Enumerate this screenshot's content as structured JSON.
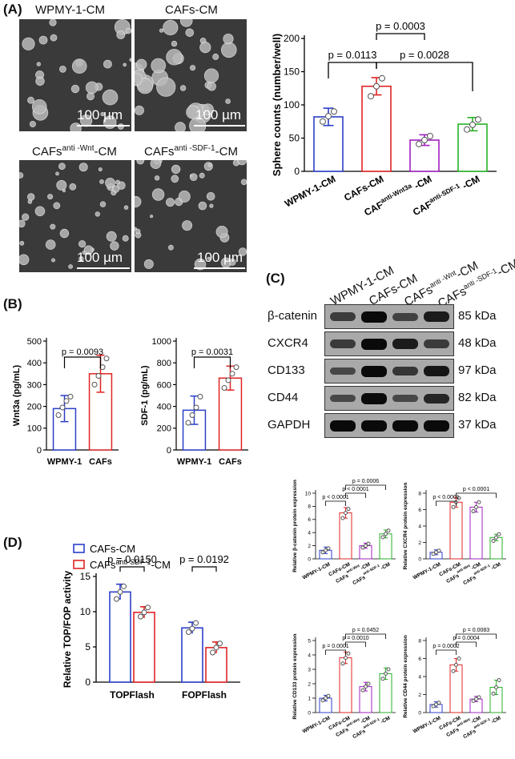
{
  "panels": {
    "a": "(A)",
    "b": "(B)",
    "c": "(C)",
    "d": "(D)"
  },
  "panelA": {
    "images": [
      {
        "label": "WPMY-1-CM",
        "scale": "100 µm"
      },
      {
        "label": "CAFs-CM",
        "scale": "100 µm"
      },
      {
        "label_main": "CAFs",
        "label_sup": "anti -Wnt",
        "label_tail": "-CM",
        "scale": "100 µm"
      },
      {
        "label_main": "CAFs",
        "label_sup": "anti -SDF-1",
        "label_tail": "-CM",
        "scale": "100 µm"
      }
    ]
  },
  "panelC": {
    "columns": [
      {
        "main": "WPMY-1-CM",
        "sup": "",
        "tail": ""
      },
      {
        "main": "CAFs-CM",
        "sup": "",
        "tail": ""
      },
      {
        "main": "CAFs",
        "sup": "anti -Wnt",
        "tail": "-CM"
      },
      {
        "main": "CAFs",
        "sup": "anti -SDF-1",
        "tail": "-CM"
      }
    ],
    "rows": [
      {
        "protein": "β-catenin",
        "kda": "85 kDa",
        "intensity": [
          0.55,
          1.0,
          0.5,
          0.85
        ]
      },
      {
        "protein": "CXCR4",
        "kda": "48 kDa",
        "intensity": [
          0.55,
          1.0,
          0.85,
          0.55
        ]
      },
      {
        "protein": "CD133",
        "kda": "97 kDa",
        "intensity": [
          0.45,
          1.0,
          0.6,
          0.9
        ]
      },
      {
        "protein": "CD44",
        "kda": "82 kDa",
        "intensity": [
          0.45,
          1.0,
          0.45,
          0.75
        ]
      },
      {
        "protein": "GAPDH",
        "kda": "37 kDa",
        "intensity": [
          1.0,
          1.0,
          1.0,
          1.0
        ]
      }
    ]
  },
  "chart_data": [
    {
      "id": "A-spheres",
      "type": "bar",
      "ylabel": "Sphere counts (number/well)",
      "ylim": [
        0,
        200
      ],
      "yticks": [
        0,
        50,
        100,
        150,
        200
      ],
      "categories": [
        "WPMY-1-CM",
        "CAFs-CM",
        "CAF anti-Wnt3a -CM",
        "CAF anti-SDF-1 -CM"
      ],
      "tick_labels": [
        {
          "main": "WPMY-1-CM",
          "sup": "",
          "tail": ""
        },
        {
          "main": "CAFs-CM",
          "sup": "",
          "tail": ""
        },
        {
          "main": "CAF",
          "sup": "anti-Wnt3a",
          "tail": " -CM"
        },
        {
          "main": "CAF",
          "sup": "anti-SDF-1",
          "tail": " -CM"
        }
      ],
      "values": [
        82,
        128,
        47,
        71
      ],
      "errors": [
        13,
        13,
        8,
        10
      ],
      "points": [
        [
          75,
          83,
          90
        ],
        [
          113,
          128,
          140
        ],
        [
          41,
          47,
          53
        ],
        [
          63,
          70,
          78
        ]
      ],
      "colors": [
        "#2c3fc9",
        "#e02424",
        "#a020c0",
        "#27b227"
      ],
      "annotations": [
        {
          "from": 0,
          "to": 1,
          "text": "p = 0.0113",
          "level": 0
        },
        {
          "from": 1,
          "to": 2,
          "text": "p = 0.0003",
          "level": 1
        },
        {
          "from": 1,
          "to": 3,
          "text": "p = 0.0028",
          "level": 0
        }
      ]
    },
    {
      "id": "B-wnt3a",
      "type": "bar",
      "ylabel": "Wnt3a (pg/mL)",
      "ylim": [
        0,
        500
      ],
      "yticks": [
        0,
        100,
        200,
        300,
        400,
        500
      ],
      "categories": [
        "WPMY-1",
        "CAFs"
      ],
      "tick_labels": [
        {
          "main": "WPMY-1",
          "sup": "",
          "tail": ""
        },
        {
          "main": "CAFs",
          "sup": "",
          "tail": ""
        }
      ],
      "values": [
        190,
        350
      ],
      "errors": [
        60,
        85
      ],
      "points": [
        [
          160,
          195,
          225,
          245
        ],
        [
          300,
          340,
          380,
          420
        ]
      ],
      "colors": [
        "#2c3fc9",
        "#e02424"
      ],
      "annotations": [
        {
          "from": 0,
          "to": 1,
          "text": "p = 0.0093",
          "level": 0
        }
      ]
    },
    {
      "id": "B-sdf1",
      "type": "bar",
      "ylabel": "SDF-1 (pg/mL)",
      "ylim": [
        0,
        1000
      ],
      "yticks": [
        0,
        200,
        400,
        600,
        800,
        1000
      ],
      "categories": [
        "WPMY-1",
        "CAFs"
      ],
      "tick_labels": [
        {
          "main": "WPMY-1",
          "sup": "",
          "tail": ""
        },
        {
          "main": "CAFs",
          "sup": "",
          "tail": ""
        }
      ],
      "values": [
        365,
        660
      ],
      "errors": [
        130,
        110
      ],
      "points": [
        [
          250,
          320,
          390,
          490
        ],
        [
          570,
          640,
          700,
          760
        ]
      ],
      "colors": [
        "#2c3fc9",
        "#e02424"
      ],
      "annotations": [
        {
          "from": 0,
          "to": 1,
          "text": "p = 0.0031",
          "level": 0
        }
      ]
    },
    {
      "id": "C-bcat",
      "type": "bar",
      "ylabel": "Relative β-catenin protein expression",
      "ylim": [
        0,
        10
      ],
      "yticks": [
        0,
        2,
        4,
        6,
        8,
        10
      ],
      "categories": [
        "WPMY-1-CM",
        "CAFs-CM",
        "CAFs anti-Wnt -CM",
        "CAFs anti-SDF-1 -CM"
      ],
      "tick_labels": [
        {
          "main": "WPMY-1-CM",
          "sup": "",
          "tail": ""
        },
        {
          "main": "CAFs-CM",
          "sup": "",
          "tail": ""
        },
        {
          "main": "CAFs",
          "sup": "anti-Wnt",
          "tail": "-CM"
        },
        {
          "main": "CAFs",
          "sup": "anti-SDF-1",
          "tail": "-CM"
        }
      ],
      "values": [
        1.3,
        7.0,
        2.0,
        3.8
      ],
      "errors": [
        0.5,
        0.8,
        0.4,
        0.6
      ],
      "points": [
        [
          1.0,
          1.3,
          1.6
        ],
        [
          6.2,
          7.0,
          7.6
        ],
        [
          1.7,
          2.0,
          2.3
        ],
        [
          3.3,
          3.8,
          4.3
        ]
      ],
      "colors": [
        "#2c3fc9",
        "#e02424",
        "#a020c0",
        "#27b227"
      ],
      "annotations": [
        {
          "from": 0,
          "to": 1,
          "text": "p < 0.0001",
          "level": 0
        },
        {
          "from": 1,
          "to": 2,
          "text": "p < 0.0001",
          "level": 1
        },
        {
          "from": 1,
          "to": 3,
          "text": "p = 0.0006",
          "level": 2
        }
      ]
    },
    {
      "id": "C-cxcr4",
      "type": "bar",
      "ylabel": "Relative CXCR4 protein expression",
      "ylim": [
        0,
        8
      ],
      "yticks": [
        0,
        2,
        4,
        6,
        8
      ],
      "categories": [
        "WPMY-1-CM",
        "CAFs-CM",
        "CAFs anti-Wnt -CM",
        "CAFs anti-SDF-1 -CM"
      ],
      "tick_labels": [
        {
          "main": "WPMY-1-CM",
          "sup": "",
          "tail": ""
        },
        {
          "main": "CAFs-CM",
          "sup": "",
          "tail": ""
        },
        {
          "main": "CAFs",
          "sup": "anti-Wnt",
          "tail": "-CM"
        },
        {
          "main": "CAFs",
          "sup": "anti-SDF-1",
          "tail": "-CM"
        }
      ],
      "values": [
        0.8,
        6.9,
        6.3,
        2.6
      ],
      "errors": [
        0.3,
        0.6,
        0.6,
        0.4
      ],
      "points": [
        [
          0.6,
          0.8,
          1.0
        ],
        [
          6.3,
          6.9,
          7.4
        ],
        [
          5.8,
          6.3,
          6.9
        ],
        [
          2.2,
          2.6,
          3.0
        ]
      ],
      "colors": [
        "#2c3fc9",
        "#e02424",
        "#a020c0",
        "#27b227"
      ],
      "annotations": [
        {
          "from": 0,
          "to": 1,
          "text": "p < 0.0001",
          "level": 0
        },
        {
          "from": 1,
          "to": 3,
          "text": "p < 0.0001",
          "level": 1
        }
      ]
    },
    {
      "id": "C-cd133",
      "type": "bar",
      "ylabel": "Relative CD133 protein expression",
      "ylim": [
        0,
        5
      ],
      "yticks": [
        0,
        1,
        2,
        3,
        4,
        5
      ],
      "categories": [
        "WPMY-1-CM",
        "CAFs-CM",
        "CAFs anti-Wnt -CM",
        "CAFs anti-SDF-1 -CM"
      ],
      "tick_labels": [
        {
          "main": "WPMY-1-CM",
          "sup": "",
          "tail": ""
        },
        {
          "main": "CAFs-CM",
          "sup": "",
          "tail": ""
        },
        {
          "main": "CAFs",
          "sup": "anti-Wnt",
          "tail": "-CM"
        },
        {
          "main": "CAFs",
          "sup": "anti-SDF-1",
          "tail": "-CM"
        }
      ],
      "values": [
        1.0,
        3.8,
        1.8,
        2.7
      ],
      "errors": [
        0.2,
        0.4,
        0.3,
        0.4
      ],
      "points": [
        [
          0.85,
          1.0,
          1.15
        ],
        [
          3.4,
          3.8,
          4.1
        ],
        [
          1.55,
          1.8,
          2.0
        ],
        [
          2.35,
          2.7,
          3.0
        ]
      ],
      "colors": [
        "#2c3fc9",
        "#e02424",
        "#a020c0",
        "#27b227"
      ],
      "annotations": [
        {
          "from": 0,
          "to": 1,
          "text": "p = 0.0001",
          "level": 0
        },
        {
          "from": 1,
          "to": 2,
          "text": "p = 0.0010",
          "level": 1
        },
        {
          "from": 1,
          "to": 3,
          "text": "p = 0.0452",
          "level": 2
        }
      ]
    },
    {
      "id": "C-cd44",
      "type": "bar",
      "ylabel": "Relative CD44 protein expression",
      "ylim": [
        0,
        8
      ],
      "yticks": [
        0,
        2,
        4,
        6,
        8
      ],
      "categories": [
        "WPMY-1-CM",
        "CAFs-CM",
        "CAFs anti-Wnt -CM",
        "CAFs anti-SDF-1 -CM"
      ],
      "tick_labels": [
        {
          "main": "WPMY-1-CM",
          "sup": "",
          "tail": ""
        },
        {
          "main": "CAFs-CM",
          "sup": "",
          "tail": ""
        },
        {
          "main": "CAFs",
          "sup": "anti-Wnt",
          "tail": "-CM"
        },
        {
          "main": "CAFs",
          "sup": "anti-SDF-1",
          "tail": "-CM"
        }
      ],
      "values": [
        0.9,
        5.3,
        1.5,
        2.8
      ],
      "errors": [
        0.3,
        0.7,
        0.3,
        0.8
      ],
      "points": [
        [
          0.7,
          0.9,
          1.1
        ],
        [
          4.6,
          5.3,
          6.0
        ],
        [
          1.3,
          1.5,
          1.7
        ],
        [
          2.1,
          2.8,
          3.6
        ]
      ],
      "colors": [
        "#2c3fc9",
        "#e02424",
        "#a020c0",
        "#27b227"
      ],
      "annotations": [
        {
          "from": 0,
          "to": 1,
          "text": "p = 0.0002",
          "level": 0
        },
        {
          "from": 1,
          "to": 2,
          "text": "p = 0.0004",
          "level": 1
        },
        {
          "from": 1,
          "to": 3,
          "text": "p = 0.0083",
          "level": 2
        }
      ]
    },
    {
      "id": "D-topfop",
      "type": "grouped-bar",
      "ylabel": "Relative TOP/FOP activity",
      "ylim": [
        0,
        15
      ],
      "yticks": [
        0,
        5,
        10,
        15
      ],
      "categories": [
        "TOPFlash",
        "FOPFlash"
      ],
      "series": [
        {
          "name": "CAFs-CM",
          "values": [
            12.8,
            7.7
          ],
          "errors": [
            1.1,
            0.8
          ],
          "points": [
            [
              11.8,
              12.8,
              13.6
            ],
            [
              7.1,
              7.6,
              8.4
            ]
          ],
          "color": "#2c3fc9"
        },
        {
          "name": "CAFs anti-SDF-1 -CM",
          "values": [
            9.9,
            4.9
          ],
          "errors": [
            0.8,
            0.8
          ],
          "points": [
            [
              9.3,
              9.9,
              10.6
            ],
            [
              4.2,
              4.9,
              5.5
            ]
          ],
          "color": "#e02424"
        }
      ],
      "legend": [
        {
          "main": "CAFs-CM",
          "sup": "",
          "tail": ""
        },
        {
          "main": "CAFs",
          "sup": "anti-SDF-1",
          "tail": "-CM"
        }
      ],
      "annotations": [
        {
          "group": 0,
          "text": "p = 0.0150"
        },
        {
          "group": 1,
          "text": "p = 0.0192"
        }
      ]
    }
  ]
}
